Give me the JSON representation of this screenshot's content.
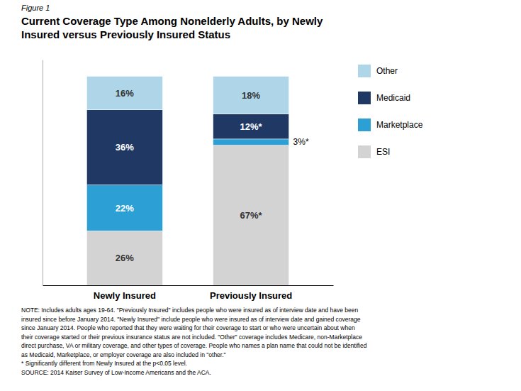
{
  "chart_data": {
    "type": "bar",
    "stacked": true,
    "subtitle": "Figure 1",
    "title": "Current Coverage Type Among Nonelderly Adults, by Newly\nInsured versus Previously Insured Status",
    "categories": [
      "Newly Insured",
      "Previously Insured"
    ],
    "series": [
      {
        "name": "ESI",
        "color": "#d3d3d3",
        "values": [
          26,
          67
        ],
        "value_labels": [
          "26%",
          "67%*"
        ]
      },
      {
        "name": "Marketplace",
        "color": "#2c9fd4",
        "values": [
          22,
          3
        ],
        "value_labels": [
          "22%",
          "3%*"
        ]
      },
      {
        "name": "Medicaid",
        "color": "#1f3864",
        "values": [
          36,
          12
        ],
        "value_labels": [
          "36%",
          "12%*"
        ]
      },
      {
        "name": "Other",
        "color": "#aed6e8",
        "values": [
          16,
          18
        ],
        "value_labels": [
          "16%",
          "18%"
        ]
      }
    ],
    "ylim": [
      0,
      108
    ],
    "data_labels": true,
    "tick_labels": "x",
    "grid": false,
    "legend": "right",
    "annotations": [
      "NOTE: Includes adults ages 19-64. \"Previously Insured\" includes people who were insured as of interview date and have been\ninsured since before January 2014. \"Newly Insured\" include people who were insured as of interview date and gained coverage\nsince January 2014.  People who reported that they were waiting for their coverage to start or who were uncertain about when\ntheir coverage started or their previous insurance status are not included. \"Other\" coverage includes Medicare, non-Marketplace\ndirect purchase, VA or military coverage, and other types of coverage. People who names a plan name that could not be identified\nas Medicaid, Marketplace, or employer coverage are also included in \"other.\"\n* Significantly different from Newly Insured at the p<0.05 level.\nSOURCE: 2014 Kaiser Survey of Low-Income Americans and the ACA."
    ]
  }
}
